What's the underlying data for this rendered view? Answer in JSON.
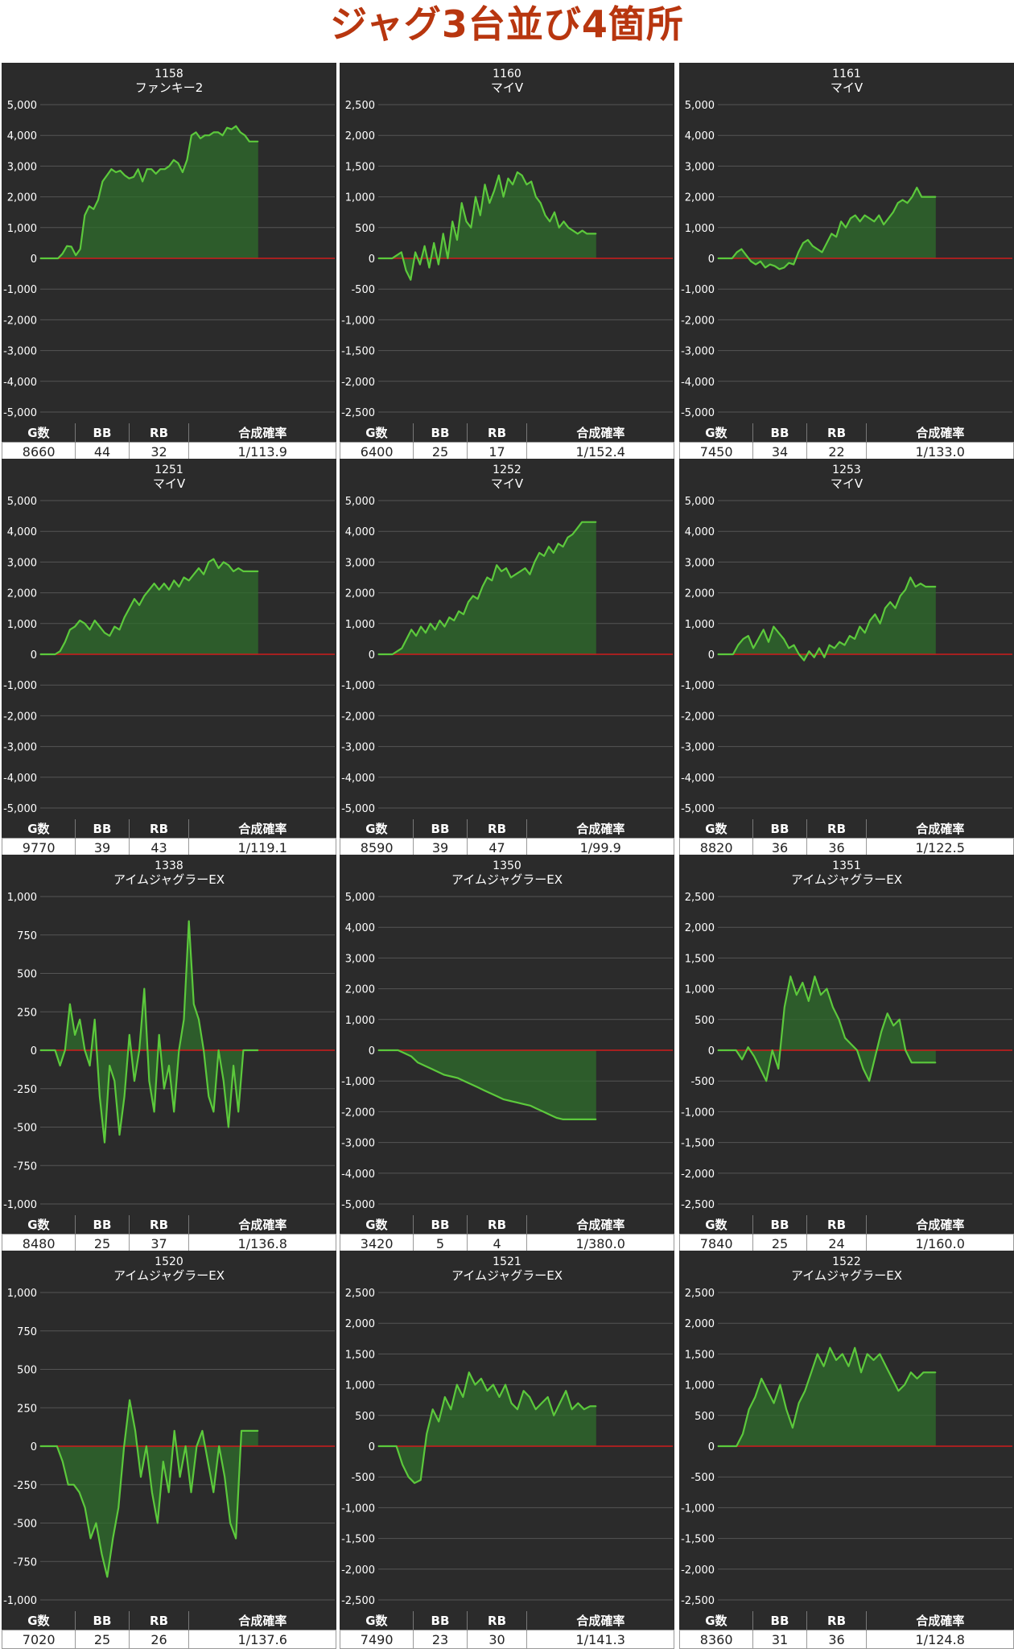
{
  "title": "ジャグ3台並び4箇所",
  "colors": {
    "title": "#b8360f",
    "panel_bg": "#2b2b2b",
    "line": "#5cc93c",
    "fill": "#2f6e2c",
    "zero_line": "#d01c1c",
    "grid": "#555555",
    "text": "#ffffff"
  },
  "table_headers": [
    "G数",
    "BB",
    "RB",
    "合成確率"
  ],
  "chart_data": [
    {
      "type": "area",
      "unit": "1158",
      "machine": "ファンキー2",
      "ylim": [
        -5000,
        5000
      ],
      "yticks": [
        "5,000",
        "4,000",
        "3,000",
        "2,000",
        "1,000",
        "0",
        "-1,000",
        "-2,000",
        "-3,000",
        "-4,000",
        "-5,000"
      ],
      "y": [
        0,
        0,
        0,
        0,
        0,
        150,
        400,
        380,
        100,
        300,
        1400,
        1700,
        1600,
        1900,
        2500,
        2700,
        2900,
        2800,
        2850,
        2700,
        2600,
        2650,
        2900,
        2500,
        2900,
        2900,
        2750,
        2900,
        2900,
        3000,
        3200,
        3100,
        2800,
        3200,
        4000,
        4100,
        3900,
        4000,
        4000,
        4100,
        4100,
        4000,
        4250,
        4200,
        4300,
        4100,
        4000,
        3800,
        3800,
        3800
      ],
      "stats": {
        "g": "8660",
        "bb": "44",
        "rb": "32",
        "rate": "1/113.9"
      }
    },
    {
      "type": "area",
      "unit": "1160",
      "machine": "マイV",
      "ylim": [
        -2500,
        2500
      ],
      "yticks": [
        "2,500",
        "2,000",
        "1,500",
        "1,000",
        "500",
        "0",
        "-500",
        "-1,000",
        "-1,500",
        "-2,000",
        "-2,500"
      ],
      "y": [
        0,
        0,
        0,
        0,
        50,
        100,
        -200,
        -350,
        100,
        -100,
        200,
        -150,
        250,
        -100,
        400,
        0,
        600,
        300,
        900,
        600,
        500,
        1000,
        700,
        1200,
        900,
        1100,
        1350,
        1000,
        1300,
        1200,
        1400,
        1350,
        1200,
        1250,
        1000,
        900,
        700,
        600,
        750,
        500,
        600,
        500,
        450,
        400,
        450,
        400,
        400,
        400
      ],
      "stats": {
        "g": "6400",
        "bb": "25",
        "rb": "17",
        "rate": "1/152.4"
      }
    },
    {
      "type": "area",
      "unit": "1161",
      "machine": "マイV",
      "ylim": [
        -5000,
        5000
      ],
      "yticks": [
        "5,000",
        "4,000",
        "3,000",
        "2,000",
        "1,000",
        "0",
        "-1,000",
        "-2,000",
        "-3,000",
        "-4,000",
        "-5,000"
      ],
      "y": [
        0,
        0,
        0,
        0,
        200,
        300,
        100,
        -100,
        -200,
        -100,
        -300,
        -200,
        -250,
        -350,
        -300,
        -150,
        -200,
        200,
        500,
        600,
        400,
        300,
        200,
        500,
        800,
        700,
        1200,
        1000,
        1300,
        1400,
        1200,
        1400,
        1300,
        1200,
        1400,
        1100,
        1300,
        1500,
        1800,
        1900,
        1800,
        2000,
        2300,
        2000,
        2000,
        2000,
        2000
      ],
      "stats": {
        "g": "7450",
        "bb": "34",
        "rb": "22",
        "rate": "1/133.0"
      }
    },
    {
      "type": "area",
      "unit": "1251",
      "machine": "マイV",
      "ylim": [
        -5000,
        5000
      ],
      "yticks": [
        "5,000",
        "4,000",
        "3,000",
        "2,000",
        "1,000",
        "0",
        "-1,000",
        "-2,000",
        "-3,000",
        "-4,000",
        "-5,000"
      ],
      "y": [
        0,
        0,
        0,
        0,
        100,
        400,
        800,
        900,
        1100,
        1000,
        800,
        1100,
        900,
        700,
        600,
        900,
        800,
        1200,
        1500,
        1800,
        1600,
        1900,
        2100,
        2300,
        2100,
        2300,
        2100,
        2400,
        2200,
        2500,
        2400,
        2600,
        2800,
        2600,
        3000,
        3100,
        2800,
        3000,
        2900,
        2700,
        2800,
        2700,
        2700,
        2700,
        2700
      ],
      "stats": {
        "g": "9770",
        "bb": "39",
        "rb": "43",
        "rate": "1/119.1"
      }
    },
    {
      "type": "area",
      "unit": "1252",
      "machine": "マイV",
      "ylim": [
        -5000,
        5000
      ],
      "yticks": [
        "5,000",
        "4,000",
        "3,000",
        "2,000",
        "1,000",
        "0",
        "-1,000",
        "-2,000",
        "-3,000",
        "-4,000",
        "-5,000"
      ],
      "y": [
        0,
        0,
        0,
        0,
        100,
        200,
        500,
        800,
        600,
        900,
        700,
        1000,
        800,
        1100,
        900,
        1200,
        1100,
        1400,
        1300,
        1700,
        1900,
        1800,
        2200,
        2500,
        2400,
        2900,
        2700,
        2800,
        2500,
        2600,
        2700,
        2800,
        2600,
        3000,
        3300,
        3200,
        3500,
        3300,
        3600,
        3500,
        3800,
        3900,
        4100,
        4300,
        4300,
        4300,
        4300
      ],
      "stats": {
        "g": "8590",
        "bb": "39",
        "rb": "47",
        "rate": "1/99.9"
      }
    },
    {
      "type": "area",
      "unit": "1253",
      "machine": "マイV",
      "ylim": [
        -5000,
        5000
      ],
      "yticks": [
        "5,000",
        "4,000",
        "3,000",
        "2,000",
        "1,000",
        "0",
        "-1,000",
        "-2,000",
        "-3,000",
        "-4,000",
        "-5,000"
      ],
      "y": [
        0,
        0,
        0,
        0,
        300,
        500,
        600,
        200,
        500,
        800,
        400,
        900,
        700,
        500,
        200,
        300,
        0,
        -200,
        100,
        -100,
        200,
        -100,
        300,
        200,
        400,
        300,
        600,
        500,
        900,
        700,
        1100,
        1300,
        1000,
        1500,
        1700,
        1500,
        1900,
        2100,
        2500,
        2200,
        2300,
        2200,
        2200,
        2200
      ],
      "stats": {
        "g": "8820",
        "bb": "36",
        "rb": "36",
        "rate": "1/122.5"
      }
    },
    {
      "type": "area",
      "unit": "1338",
      "machine": "アイムジャグラーEX",
      "ylim": [
        -1000,
        1000
      ],
      "yticks": [
        "1,000",
        "750",
        "500",
        "250",
        "0",
        "-250",
        "-500",
        "-750",
        "-1,000"
      ],
      "y": [
        0,
        0,
        0,
        0,
        -100,
        0,
        300,
        100,
        200,
        0,
        -100,
        200,
        -300,
        -600,
        -100,
        -200,
        -550,
        -300,
        100,
        -200,
        0,
        400,
        -200,
        -400,
        100,
        -250,
        -100,
        -400,
        0,
        200,
        840,
        300,
        200,
        0,
        -300,
        -400,
        0,
        -200,
        -500,
        -100,
        -400,
        0,
        0,
        0,
        0
      ],
      "stats": {
        "g": "8480",
        "bb": "25",
        "rb": "37",
        "rate": "1/136.8"
      }
    },
    {
      "type": "area",
      "unit": "1350",
      "machine": "アイムジャグラーEX",
      "ylim": [
        -5000,
        5000
      ],
      "yticks": [
        "5,000",
        "4,000",
        "3,000",
        "2,000",
        "1,000",
        "0",
        "-1,000",
        "-2,000",
        "-3,000",
        "-4,000",
        "-5,000"
      ],
      "y": [
        0,
        0,
        0,
        0,
        -100,
        -200,
        -400,
        -500,
        -600,
        -700,
        -800,
        -850,
        -900,
        -1000,
        -1100,
        -1200,
        -1300,
        -1400,
        -1500,
        -1600,
        -1650,
        -1700,
        -1750,
        -1800,
        -1900,
        -2000,
        -2100,
        -2200,
        -2250,
        -2250,
        -2250,
        -2250,
        -2250,
        -2250
      ],
      "stats": {
        "g": "3420",
        "bb": "5",
        "rb": "4",
        "rate": "1/380.0"
      }
    },
    {
      "type": "area",
      "unit": "1351",
      "machine": "アイムジャグラーEX",
      "ylim": [
        -2500,
        2500
      ],
      "yticks": [
        "2,500",
        "2,000",
        "1,500",
        "1,000",
        "500",
        "0",
        "-500",
        "-1,000",
        "-1,500",
        "-2,000",
        "-2,500"
      ],
      "y": [
        0,
        0,
        0,
        0,
        -150,
        50,
        -100,
        -300,
        -500,
        0,
        -300,
        700,
        1200,
        900,
        1100,
        800,
        1200,
        900,
        1000,
        700,
        500,
        200,
        100,
        0,
        -300,
        -500,
        -100,
        300,
        600,
        400,
        500,
        0,
        -200,
        -200,
        -200,
        -200,
        -200
      ],
      "stats": {
        "g": "7840",
        "bb": "25",
        "rb": "24",
        "rate": "1/160.0"
      }
    },
    {
      "type": "area",
      "unit": "1520",
      "machine": "アイムジャグラーEX",
      "ylim": [
        -1000,
        1000
      ],
      "yticks": [
        "1,000",
        "750",
        "500",
        "250",
        "0",
        "-250",
        "-500",
        "-750",
        "-1,000"
      ],
      "y": [
        0,
        0,
        0,
        0,
        -100,
        -250,
        -250,
        -300,
        -400,
        -600,
        -500,
        -700,
        -850,
        -600,
        -400,
        0,
        300,
        100,
        -200,
        0,
        -300,
        -500,
        -100,
        -300,
        100,
        -200,
        0,
        -300,
        0,
        100,
        -100,
        -300,
        0,
        -200,
        -500,
        -600,
        100,
        100,
        100,
        100
      ],
      "stats": {
        "g": "7020",
        "bb": "25",
        "rb": "26",
        "rate": "1/137.6"
      }
    },
    {
      "type": "area",
      "unit": "1521",
      "machine": "アイムジャグラーEX",
      "ylim": [
        -2500,
        2500
      ],
      "yticks": [
        "2,500",
        "2,000",
        "1,500",
        "1,000",
        "500",
        "0",
        "-500",
        "-1,000",
        "-1,500",
        "-2,000",
        "-2,500"
      ],
      "y": [
        0,
        0,
        0,
        0,
        -300,
        -500,
        -600,
        -550,
        200,
        600,
        400,
        800,
        600,
        1000,
        800,
        1200,
        1000,
        1100,
        900,
        1000,
        800,
        1000,
        700,
        600,
        900,
        800,
        600,
        700,
        800,
        500,
        700,
        900,
        600,
        700,
        600,
        650,
        650
      ],
      "stats": {
        "g": "7490",
        "bb": "23",
        "rb": "30",
        "rate": "1/141.3"
      }
    },
    {
      "type": "area",
      "unit": "1522",
      "machine": "アイムジャグラーEX",
      "ylim": [
        -2500,
        2500
      ],
      "yticks": [
        "2,500",
        "2,000",
        "1,500",
        "1,000",
        "500",
        "0",
        "-500",
        "-1,000",
        "-1,500",
        "-2,000",
        "-2,500"
      ],
      "y": [
        0,
        0,
        0,
        0,
        200,
        600,
        800,
        1100,
        900,
        700,
        1000,
        600,
        300,
        700,
        900,
        1200,
        1500,
        1300,
        1600,
        1400,
        1500,
        1300,
        1600,
        1200,
        1500,
        1400,
        1500,
        1300,
        1100,
        900,
        1000,
        1200,
        1100,
        1200,
        1200,
        1200
      ],
      "stats": {
        "g": "8360",
        "bb": "31",
        "rb": "36",
        "rate": "1/124.8"
      }
    }
  ]
}
